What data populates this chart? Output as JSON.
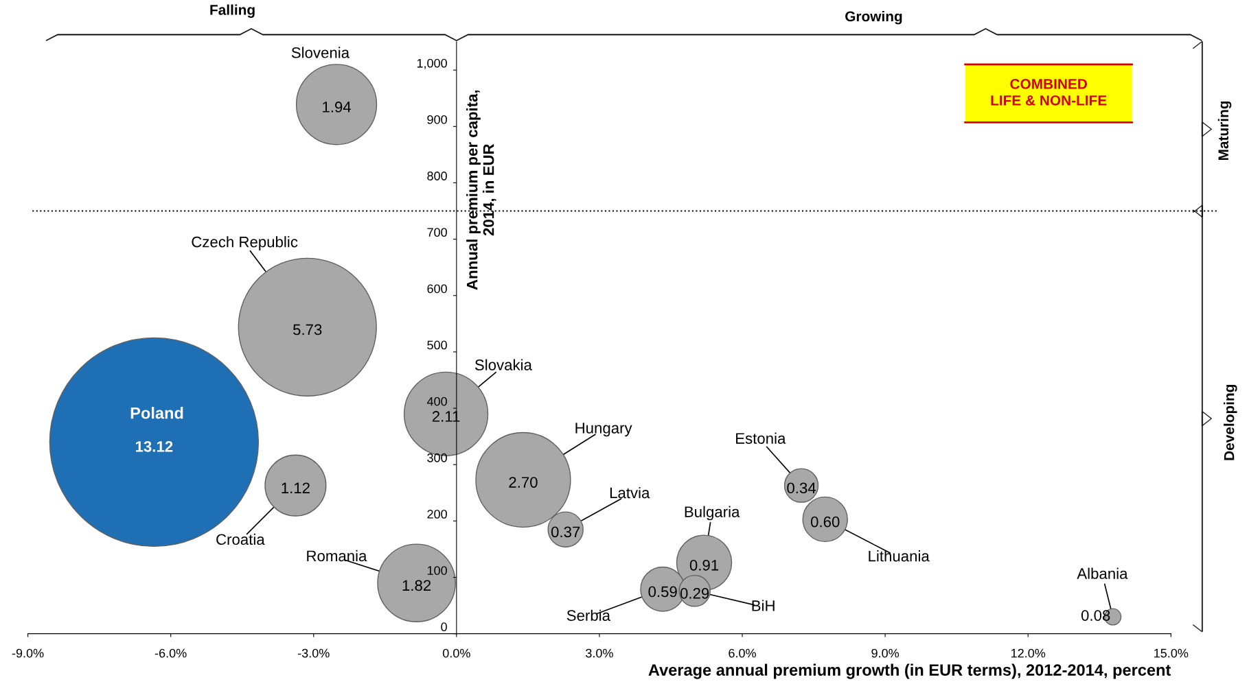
{
  "chart_data": {
    "type": "bubble",
    "xlabel": "Average annual premium growth (in EUR terms), 2012-2014, percent",
    "ylabel": "Annual premium per capita,\n2014, in EUR",
    "xlim": [
      -9,
      15
    ],
    "xticks": [
      {
        "value": -9,
        "label": "-9.0%"
      },
      {
        "value": -6,
        "label": "-6.0%"
      },
      {
        "value": -3,
        "label": "-3.0%"
      },
      {
        "value": 0,
        "label": "0.0%"
      },
      {
        "value": 3,
        "label": "3.0%"
      },
      {
        "value": 6,
        "label": "6.0%"
      },
      {
        "value": 9,
        "label": "9.0%"
      },
      {
        "value": 12,
        "label": "12.0%"
      },
      {
        "value": 15,
        "label": "15.0%"
      }
    ],
    "ylim": [
      0,
      1050
    ],
    "yticks": [
      0,
      100,
      200,
      300,
      400,
      500,
      600,
      700,
      800,
      900,
      {
        "value": 1000,
        "label": "1,000"
      }
    ],
    "grid": false,
    "legend": false,
    "series": [
      {
        "x": [
          -2.52,
          -3.13,
          -6.35,
          -3.38,
          -0.22,
          -0.84,
          1.4,
          2.29,
          7.24,
          7.74,
          5.2,
          4.33,
          5.0,
          13.78
        ],
        "values": [
          939,
          544,
          340,
          263,
          390,
          90,
          273,
          185,
          263,
          203,
          126,
          79,
          76,
          30
        ],
        "sizes": [
          1.94,
          5.73,
          13.12,
          1.12,
          2.11,
          1.82,
          2.7,
          0.37,
          0.34,
          0.6,
          0.91,
          0.59,
          0.29,
          0.08
        ],
        "colors": [
          "#a8a8a8",
          "#a8a8a8",
          "#1f6fb4",
          "#a8a8a8",
          "#a8a8a8",
          "#a8a8a8",
          "#a8a8a8",
          "#a8a8a8",
          "#a8a8a8",
          "#a8a8a8",
          "#a8a8a8",
          "#a8a8a8",
          "#a8a8a8",
          "#a8a8a8"
        ],
        "value_labels": [
          "1.94",
          "5.73",
          "13.12",
          "1.12",
          "2.11",
          "1.82",
          "2.70",
          "0.37",
          "0.34",
          "0.60",
          "0.91",
          "0.59",
          "0.29",
          "0.08"
        ]
      }
    ],
    "ref_lines": [
      {
        "axis": "y",
        "value": 750,
        "line_style": "dotted",
        "color": "#000000"
      }
    ],
    "annotations": [
      "Falling",
      "Growing",
      "Maturing",
      "Developing",
      "COMBINED\nLIFE & NON-LIFE",
      "Slovenia",
      {
        "text": "Czech Republic",
        "x": -3.13,
        "y": 544
      },
      {
        "text": "Poland",
        "x": -6.35,
        "y": 340
      },
      {
        "text": "Croatia",
        "x": -3.38,
        "y": 263
      },
      {
        "text": "Slovakia",
        "x": -0.22,
        "y": 390
      },
      {
        "text": "Romania",
        "x": -0.84,
        "y": 90
      },
      {
        "text": "Hungary",
        "x": 1.4,
        "y": 273
      },
      {
        "text": "Latvia",
        "x": 2.29,
        "y": 185
      },
      {
        "text": "Estonia",
        "x": 7.24,
        "y": 263
      },
      {
        "text": "Lithuania",
        "x": 7.74,
        "y": 203
      },
      {
        "text": "Bulgaria",
        "x": 5.2,
        "y": 126
      },
      {
        "text": "Serbia",
        "x": 4.33,
        "y": 79
      },
      {
        "text": "BiH",
        "x": 5.0,
        "y": 76
      },
      {
        "text": "Albania",
        "x": 13.78,
        "y": 30
      }
    ]
  }
}
